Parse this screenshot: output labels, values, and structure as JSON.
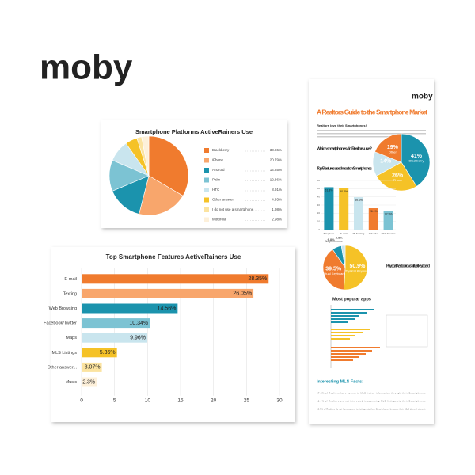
{
  "logo": "moby",
  "infographic": {
    "logo": "moby",
    "title": "A Realtors Guide to the Smartphone Market",
    "intro": "Realtors love their Smartphones!",
    "apps_title": "Most popular apps",
    "facts_title": "Interesting MLS Facts:",
    "facts": [
      "57.9% of Realtors have access to MLS listing information through their Smartphones.",
      "11.4% of Realtors are not interested in accessing MLS listings via their Smartphones.",
      "10.7% of Realtors do not have access to listings via their Smartphones because their MLS doesn't allow it."
    ]
  },
  "chart_data": [
    {
      "type": "pie",
      "title": "Smartphone Platforms ActiveRainers Use",
      "categories": [
        "Blackberry",
        "iPhone",
        "Android",
        "Palm",
        "HTC",
        "Other answer",
        "I do not use a smartphone",
        "Motorola"
      ],
      "values": [
        33.86,
        20.79,
        14.85,
        12.86,
        8.91,
        4.95,
        1.98,
        2.98
      ],
      "value_labels": [
        "33.86%",
        "20.79%",
        "14.85%",
        "12.86%",
        "8.91%",
        "4.95%",
        "1.98%",
        "2.98%"
      ],
      "colors": [
        "#f07b2e",
        "#f8a66c",
        "#1b93ad",
        "#7cc3d3",
        "#c9e5ee",
        "#f5c227",
        "#fbe3a0",
        "#fdf0da"
      ]
    },
    {
      "type": "hbar",
      "title": "Top Smartphone Features ActiveRainers Use",
      "categories": [
        "E-mail",
        "Texting",
        "Web Browsing",
        "Facebook/Twitter",
        "Maps",
        "MLS Listings",
        "Other answer...",
        "Music"
      ],
      "values": [
        28.35,
        26.05,
        14.56,
        10.34,
        9.96,
        5.36,
        3.07,
        2.3
      ],
      "value_labels": [
        "28.35%",
        "26.05%",
        "14.56%",
        "10.34%",
        "9.96%",
        "5.36%",
        "3.07%",
        "2.3%"
      ],
      "colors": [
        "#f07b2e",
        "#f8a66c",
        "#1b93ad",
        "#7cc3d3",
        "#c9e5ee",
        "#f5c227",
        "#fbe3a0",
        "#fdf0da"
      ],
      "xlim": [
        0,
        30
      ],
      "xticks": [
        0,
        5,
        10,
        15,
        20,
        25,
        30
      ],
      "grid": true
    },
    {
      "type": "pie",
      "title": "Which smartphones do Realtors use?",
      "categories": [
        "Blackberry",
        "iPhone",
        null,
        "Other"
      ],
      "values": [
        41,
        26,
        14,
        19
      ],
      "value_labels": [
        "41%",
        "26%",
        "14%",
        "19%"
      ],
      "colors": [
        "#1b93ad",
        "#f5c227",
        "#c9e5ee",
        "#f07b2e"
      ]
    },
    {
      "type": "vbar",
      "title": "Top 5 features used most on Smartphones",
      "categories": [
        "Telephone",
        "E-mail",
        "MLS listing",
        "Calendar",
        "Web browser"
      ],
      "values": [
        51.8,
        50.4,
        39.6,
        26.1,
        22.9
      ],
      "value_labels": [
        "51.8%",
        "50.4%",
        "39.6%",
        "26.1%",
        "22.9%"
      ],
      "colors": [
        "#1b93ad",
        "#f5c227",
        "#c9e5ee",
        "#f07b2e",
        "#7cc3d3"
      ],
      "ylim": [
        0,
        60
      ],
      "yticks": [
        0,
        10,
        20,
        30,
        40,
        50,
        60
      ],
      "grid": true
    },
    {
      "type": "pie",
      "title": "Physical Keyboard vs Virtual keyboard",
      "categories": [
        "Physical Keyboard",
        "Virtual Keyboard",
        null,
        "No preference"
      ],
      "values": [
        50.9,
        39.5,
        6.8,
        2.8
      ],
      "value_labels": [
        "50.9%",
        "39.5%",
        "6.8%",
        "2.8%"
      ],
      "colors": [
        "#f5c227",
        "#f07b2e",
        "#1b93ad",
        "#c9e5ee"
      ]
    }
  ]
}
